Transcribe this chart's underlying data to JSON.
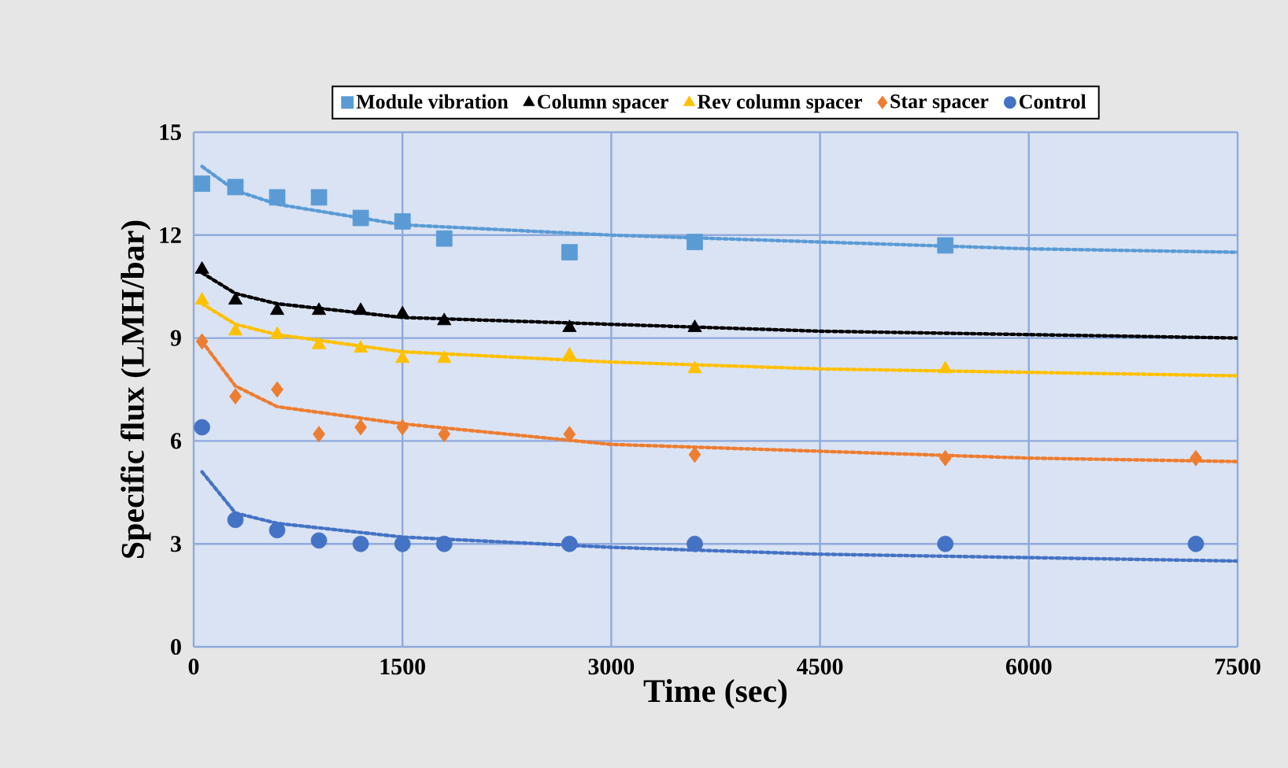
{
  "chart_data": {
    "type": "scatter",
    "xlabel": "Time (sec)",
    "ylabel": "Specific flux (LMH/bar)",
    "xlim": [
      0,
      7500
    ],
    "ylim": [
      0,
      15
    ],
    "xticks": [
      0,
      1500,
      3000,
      4500,
      6000,
      7500
    ],
    "yticks": [
      0,
      3,
      6,
      9,
      12,
      15
    ],
    "grid": true,
    "legend": "top",
    "series": [
      {
        "name": "Module vibration",
        "color": "#5b9bd5",
        "marker": "square",
        "x": [
          60,
          300,
          600,
          900,
          1200,
          1500,
          1800,
          2700,
          3600,
          5400
        ],
        "values": [
          13.5,
          13.4,
          13.1,
          13.1,
          12.5,
          12.4,
          11.9,
          11.5,
          11.8,
          11.7
        ]
      },
      {
        "name": "Column spacer",
        "color": "#000000",
        "marker": "triangle",
        "x": [
          60,
          300,
          600,
          900,
          1200,
          1500,
          1800,
          2700,
          3600
        ],
        "values": [
          11.0,
          10.1,
          9.8,
          9.8,
          9.8,
          9.7,
          9.5,
          9.3,
          9.3
        ]
      },
      {
        "name": "Rev column spacer",
        "color": "#ffc000",
        "marker": "triangle",
        "x": [
          60,
          300,
          600,
          900,
          1200,
          1500,
          1800,
          2700,
          3600,
          5400
        ],
        "values": [
          10.1,
          9.2,
          9.1,
          8.8,
          8.7,
          8.4,
          8.4,
          8.5,
          8.1,
          8.1
        ]
      },
      {
        "name": "Star spacer",
        "color": "#ed7d31",
        "marker": "diamond",
        "x": [
          60,
          300,
          600,
          900,
          1200,
          1500,
          1800,
          2700,
          3600,
          5400,
          7200
        ],
        "values": [
          8.9,
          7.3,
          7.5,
          6.2,
          6.4,
          6.4,
          6.2,
          6.2,
          5.6,
          5.5,
          5.5
        ]
      },
      {
        "name": "Control",
        "color": "#4472c4",
        "marker": "circle",
        "x": [
          60,
          300,
          600,
          900,
          1200,
          1500,
          1800,
          2700,
          3600,
          5400,
          7200
        ],
        "values": [
          6.4,
          3.7,
          3.4,
          3.1,
          3.0,
          3.0,
          3.0,
          3.0,
          3.0,
          3.0,
          3.0
        ]
      },
      {
        "type": "line",
        "line_style": "dotted",
        "marker": "none",
        "color": "#5b9bd5",
        "x": [
          60,
          300,
          600,
          1500,
          3000,
          4500,
          6000,
          7500
        ],
        "values": [
          14.0,
          13.3,
          12.9,
          12.3,
          12.0,
          11.8,
          11.6,
          11.5
        ]
      },
      {
        "type": "line",
        "line_style": "dotted",
        "marker": "none",
        "color": "#000000",
        "x": [
          60,
          300,
          600,
          1500,
          3000,
          4500,
          6000,
          7500
        ],
        "values": [
          10.9,
          10.3,
          10.0,
          9.6,
          9.4,
          9.2,
          9.1,
          9.0
        ]
      },
      {
        "type": "line",
        "line_style": "dotted",
        "marker": "none",
        "color": "#ffc000",
        "x": [
          60,
          300,
          600,
          1500,
          3000,
          4500,
          6000,
          7500
        ],
        "values": [
          10.0,
          9.4,
          9.1,
          8.6,
          8.3,
          8.1,
          8.0,
          7.9
        ]
      },
      {
        "type": "line",
        "line_style": "dotted",
        "marker": "none",
        "color": "#ed7d31",
        "x": [
          60,
          300,
          600,
          1500,
          3000,
          4500,
          6000,
          7500
        ],
        "values": [
          8.9,
          7.6,
          7.0,
          6.5,
          5.9,
          5.7,
          5.5,
          5.4
        ]
      },
      {
        "type": "line",
        "line_style": "dotted",
        "marker": "none",
        "color": "#4472c4",
        "x": [
          60,
          300,
          600,
          1500,
          3000,
          4500,
          6000,
          7500
        ],
        "values": [
          5.1,
          3.9,
          3.6,
          3.2,
          2.9,
          2.7,
          2.6,
          2.5
        ]
      }
    ]
  }
}
